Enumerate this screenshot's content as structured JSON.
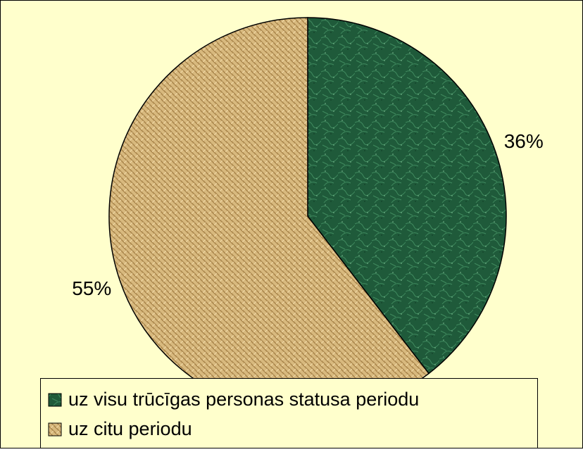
{
  "chart_data": {
    "type": "pie",
    "categories": [
      "uz visu trūcīgas personas statusa periodu",
      "uz citu periodu"
    ],
    "values": [
      36,
      55
    ],
    "value_labels": [
      "36%",
      "55%"
    ],
    "colors": [
      "#1f5a3a",
      "#c9a86a"
    ],
    "legend": "bottom"
  }
}
